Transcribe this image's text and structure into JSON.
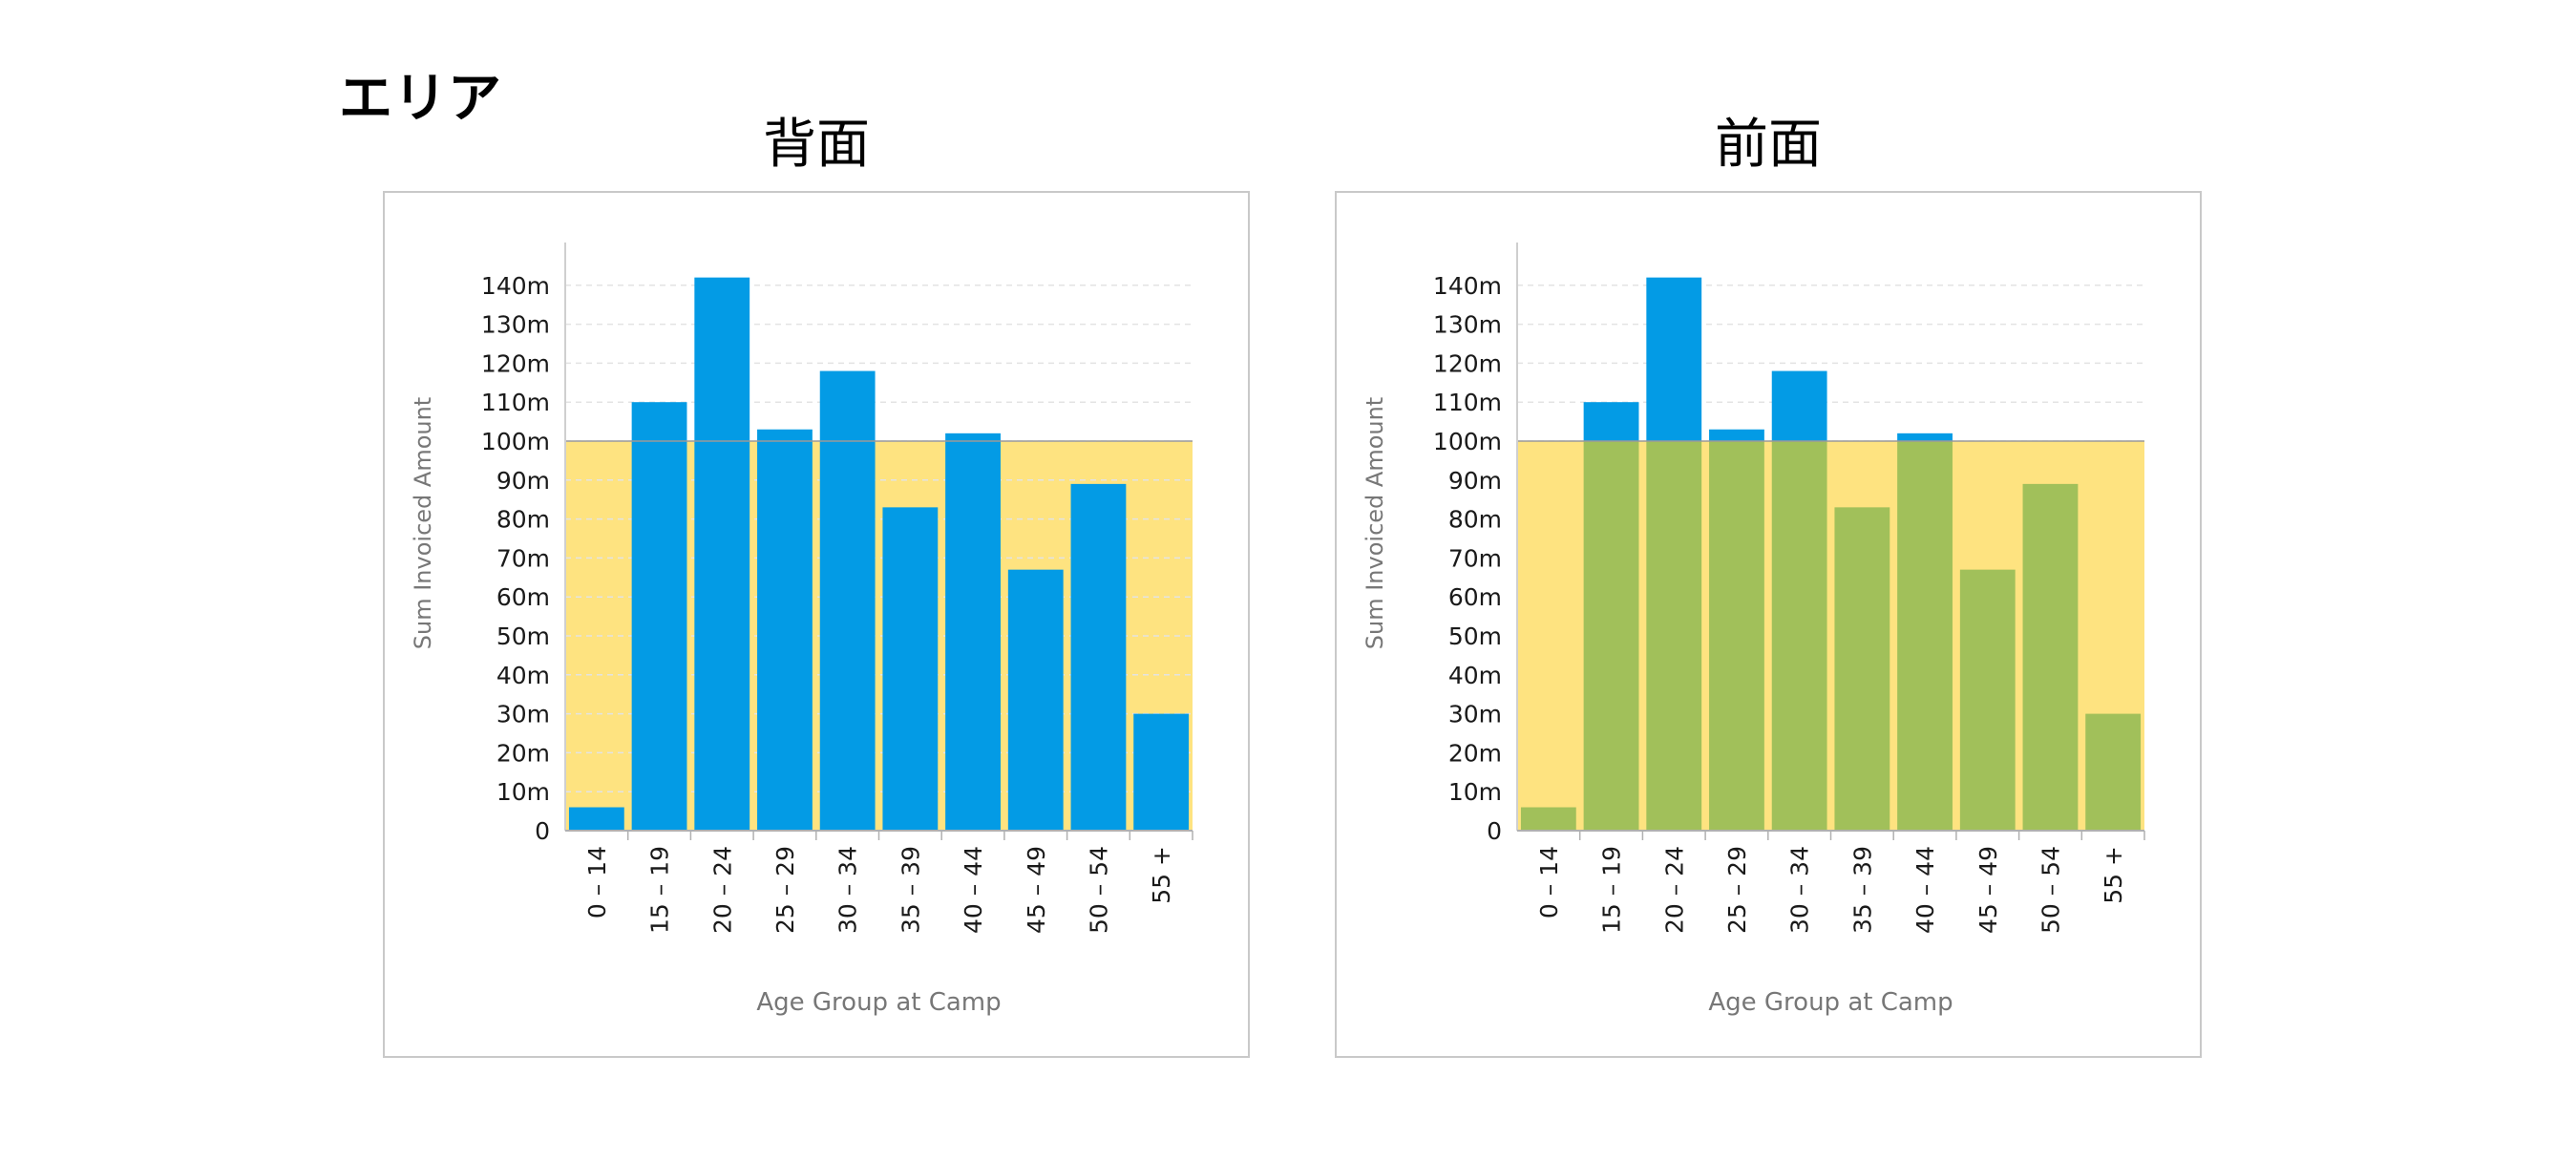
{
  "page": {
    "section_title": "エリア"
  },
  "colors": {
    "bar_blue": "#039be5",
    "bar_green": "#a1c05a",
    "band_yellow": "#fee380",
    "axis_text": "#1a1a1a",
    "label_gray": "#777777"
  },
  "chart_data": [
    {
      "type": "bar",
      "title": "背面",
      "xlabel": "Age Group at Camp",
      "ylabel": "Sum Invoiced Amount",
      "categories": [
        "0 – 14",
        "15 – 19",
        "20 – 24",
        "25 – 29",
        "30 – 34",
        "35 – 39",
        "40 – 44",
        "45 – 49",
        "50 – 54",
        "55 +"
      ],
      "series": [
        {
          "values": [
            6,
            110,
            142,
            103,
            118,
            83,
            102,
            67,
            89,
            30
          ]
        }
      ],
      "ylim": [
        0,
        150
      ],
      "yticks": [
        0,
        10,
        20,
        30,
        40,
        50,
        60,
        70,
        80,
        90,
        100,
        110,
        120,
        130,
        140
      ],
      "ytick_labels": [
        "0",
        "10m",
        "20m",
        "30m",
        "40m",
        "50m",
        "60m",
        "70m",
        "80m",
        "90m",
        "100m",
        "110m",
        "120m",
        "130m",
        "140m"
      ],
      "band": {
        "from": 0,
        "to": 100,
        "color": "#fee380",
        "layer": "behind"
      },
      "bar_color": "#039be5",
      "grid": true
    },
    {
      "type": "bar",
      "title": "前面",
      "xlabel": "Age Group at Camp",
      "ylabel": "Sum Invoiced Amount",
      "categories": [
        "0 – 14",
        "15 – 19",
        "20 – 24",
        "25 – 29",
        "30 – 34",
        "35 – 39",
        "40 – 44",
        "45 – 49",
        "50 – 54",
        "55 +"
      ],
      "series": [
        {
          "values": [
            6,
            110,
            142,
            103,
            118,
            83,
            102,
            67,
            89,
            30
          ]
        }
      ],
      "ylim": [
        0,
        150
      ],
      "yticks": [
        0,
        10,
        20,
        30,
        40,
        50,
        60,
        70,
        80,
        90,
        100,
        110,
        120,
        130,
        140
      ],
      "ytick_labels": [
        "0",
        "10m",
        "20m",
        "30m",
        "40m",
        "50m",
        "60m",
        "70m",
        "80m",
        "90m",
        "100m",
        "110m",
        "120m",
        "130m",
        "140m"
      ],
      "band": {
        "from": 0,
        "to": 100,
        "color": "#fee380",
        "layer": "front"
      },
      "bar_color": "#039be5",
      "bar_color_in_band": "#a1c05a",
      "grid": true
    }
  ]
}
